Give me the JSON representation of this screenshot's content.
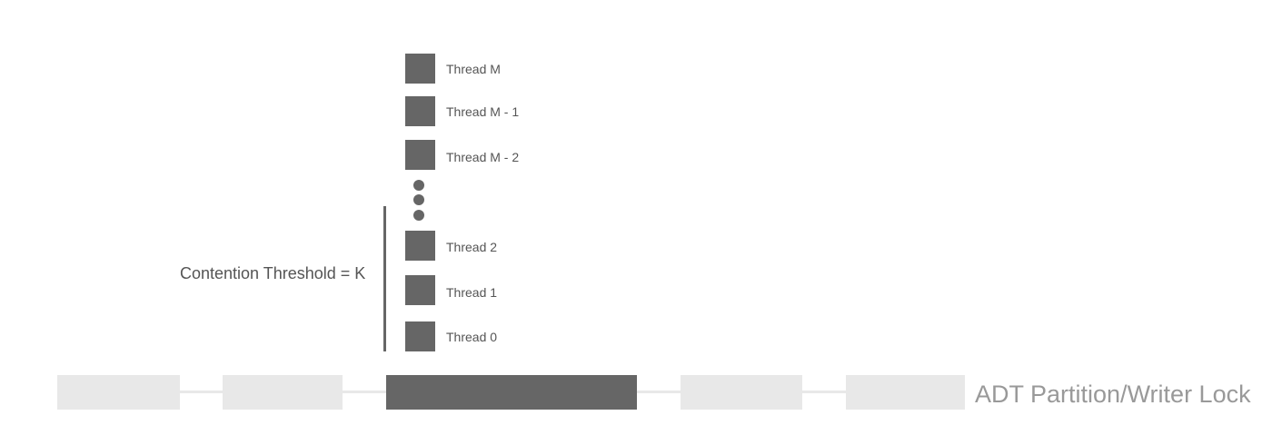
{
  "threads": [
    {
      "label": "Thread M"
    },
    {
      "label": "Thread M - 1"
    },
    {
      "label": "Thread M - 2"
    },
    {
      "label": "Thread 2"
    },
    {
      "label": "Thread 1"
    },
    {
      "label": "Thread 0"
    }
  ],
  "threshold": {
    "label": "Contention Threshold = K"
  },
  "lock": {
    "label": "ADT Partition/Writer Lock"
  },
  "colors": {
    "thread_box": "#666666",
    "partition_inactive": "#e8e8e8",
    "partition_active": "#666666",
    "lock_label": "#999999"
  }
}
